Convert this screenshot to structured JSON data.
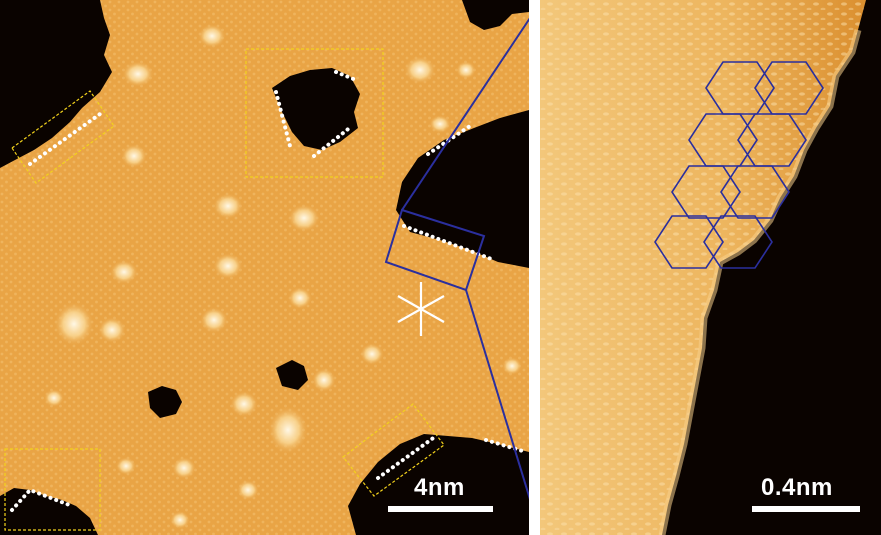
{
  "panels": {
    "left": {
      "scale_bar_label": "4nm"
    },
    "right": {
      "scale_bar_label": "0.4nm"
    }
  },
  "colors": {
    "surface_mid": "#E9A445",
    "surface_light": "#F6CF86",
    "surface_dark": "#C9801F",
    "hole": "#0A0300",
    "zoom_frame": "#2B2F9E",
    "dotted_edge": "#FFFFFF",
    "dashed_box": "#F2D21C",
    "hexagon": "#2B2F9E",
    "divider": "#FFFFFF"
  }
}
